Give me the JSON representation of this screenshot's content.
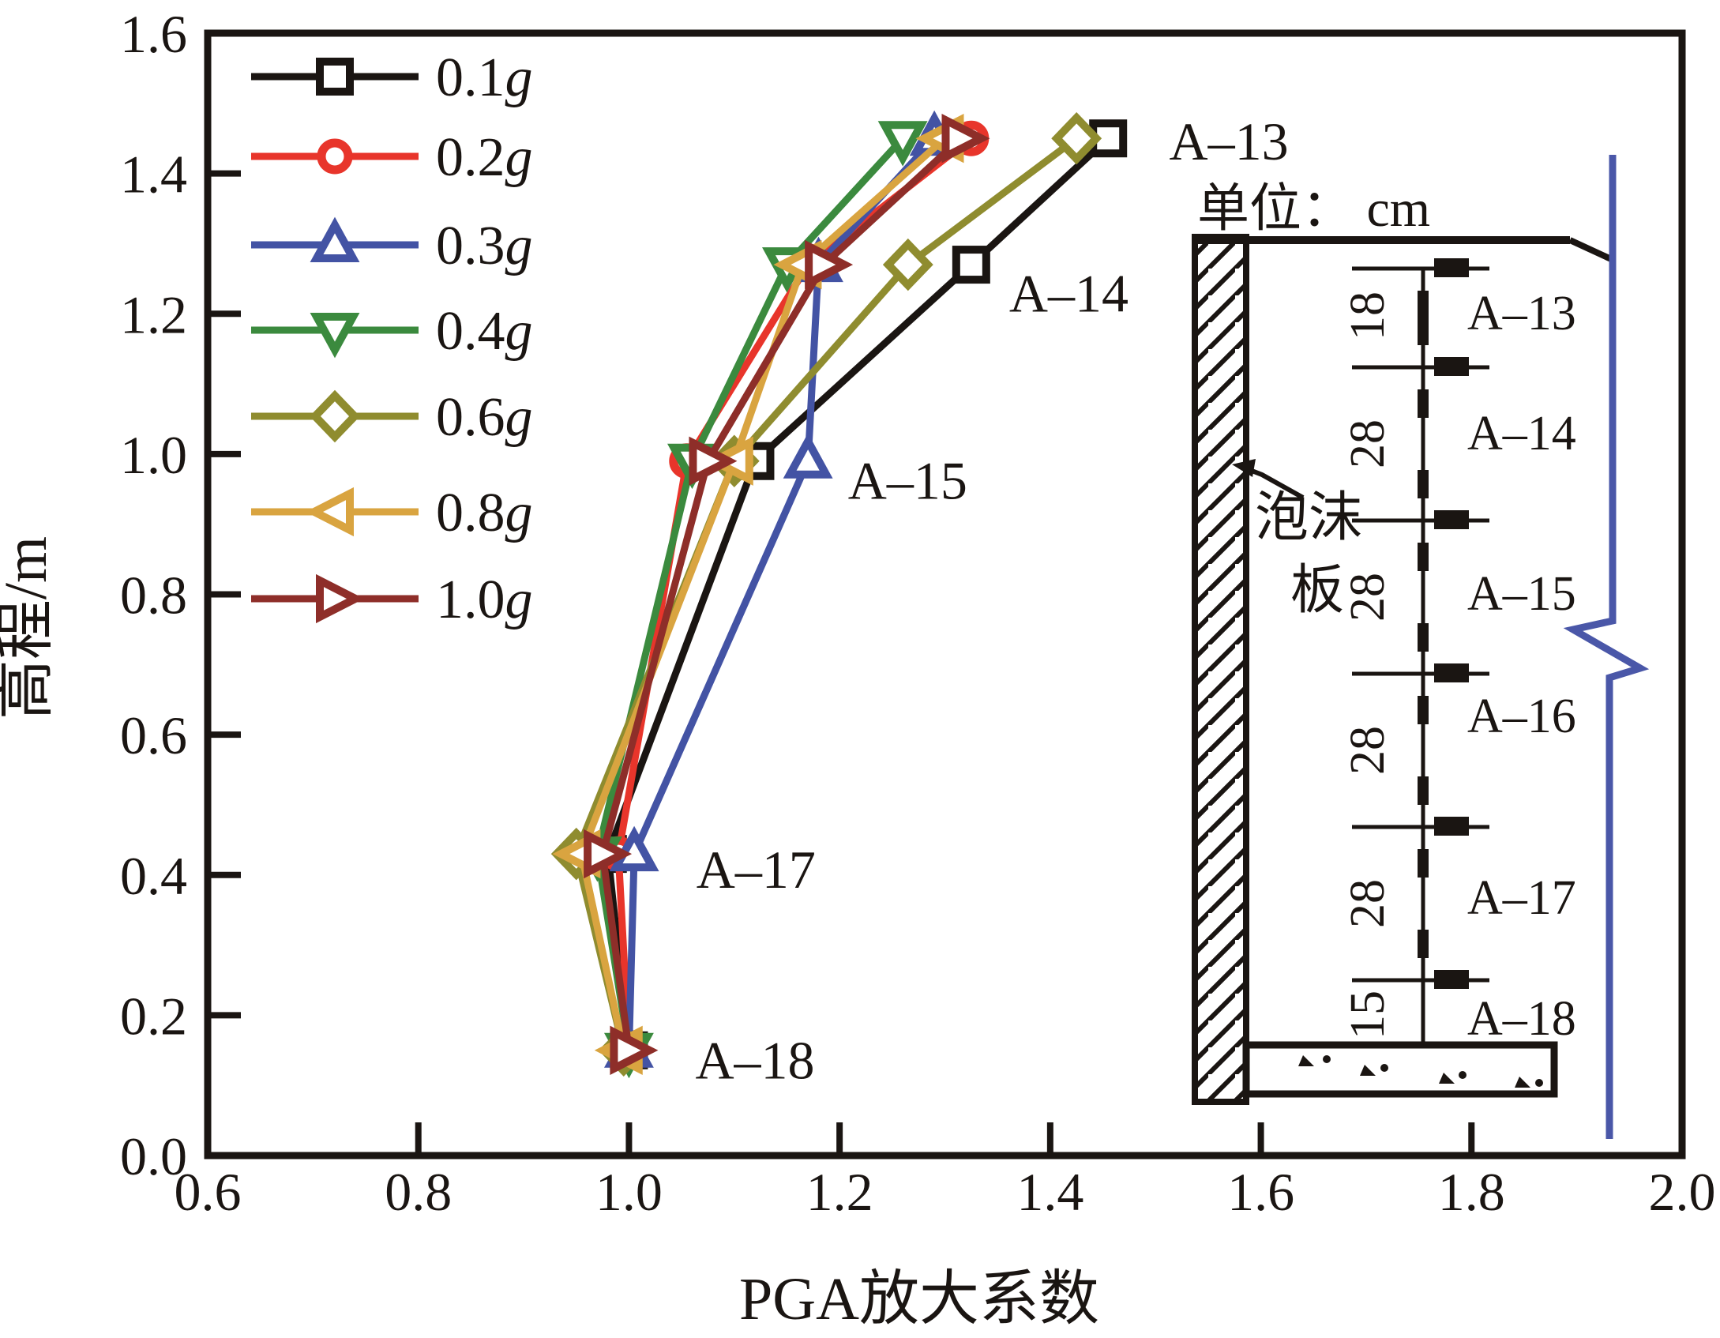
{
  "figure": {
    "background": "#ffffff",
    "frame_color": "#1a1512"
  },
  "chart_data": {
    "type": "line",
    "title": "",
    "xlabel": "PGA放大系数",
    "ylabel": "高程/m",
    "xlim": [
      0.6,
      2.0
    ],
    "ylim": [
      0.0,
      1.6
    ],
    "xticks": [
      "0.6",
      "0.8",
      "1.0",
      "1.2",
      "1.4",
      "1.6",
      "1.8",
      "2.0"
    ],
    "yticks": [
      "0.0",
      "0.2",
      "0.4",
      "0.6",
      "0.8",
      "1.0",
      "1.2",
      "1.4",
      "1.6"
    ],
    "grid": false,
    "legend_position": "top-left-inside",
    "heights_m": [
      0.15,
      0.43,
      0.99,
      1.27,
      1.45
    ],
    "series": [
      {
        "name": "0.1g",
        "color": "#1a1512",
        "marker": "square",
        "x": [
          1.0,
          0.98,
          1.12,
          1.325,
          1.455
        ]
      },
      {
        "name": "0.2g",
        "color": "#e8352b",
        "marker": "circle",
        "x": [
          1.0,
          0.99,
          1.055,
          1.17,
          1.325
        ]
      },
      {
        "name": "0.3g",
        "color": "#4353a4",
        "marker": "triangle-up",
        "x": [
          1.0,
          1.005,
          1.17,
          1.18,
          1.29
        ]
      },
      {
        "name": "0.4g",
        "color": "#3b8a3e",
        "marker": "triangle-down",
        "x": [
          1.0,
          0.97,
          1.06,
          1.15,
          1.26
        ]
      },
      {
        "name": "0.6g",
        "color": "#8f8c2f",
        "marker": "diamond",
        "x": [
          0.995,
          0.95,
          1.1,
          1.265,
          1.425
        ]
      },
      {
        "name": "0.8g",
        "color": "#d9a440",
        "marker": "triangle-left",
        "x": [
          0.995,
          0.955,
          1.1,
          1.165,
          1.3
        ]
      },
      {
        "name": "1.0g",
        "color": "#8e2e29",
        "marker": "triangle-right",
        "x": [
          1.0,
          0.975,
          1.075,
          1.185,
          1.315
        ]
      }
    ],
    "annotations": [
      {
        "text": "A–13",
        "x": 1.513,
        "y": 1.447
      },
      {
        "text": "A–14",
        "x": 1.361,
        "y": 1.23
      },
      {
        "text": "A–15",
        "x": 1.208,
        "y": 0.963
      },
      {
        "text": "A–17",
        "x": 1.064,
        "y": 0.409
      },
      {
        "text": "A–18",
        "x": 1.063,
        "y": 0.137
      }
    ]
  },
  "inset": {
    "unit_label": "单位： cm",
    "foam_label": [
      "泡沫",
      "板"
    ],
    "sensors": [
      "A–13",
      "A–14",
      "A–15",
      "A–16",
      "A–17",
      "A–18"
    ],
    "spacings_cm": [
      "18",
      "28",
      "28",
      "28",
      "28",
      "15"
    ],
    "wall_hatch_color": "#1a1512",
    "break_line_color": "#4a57a8"
  }
}
